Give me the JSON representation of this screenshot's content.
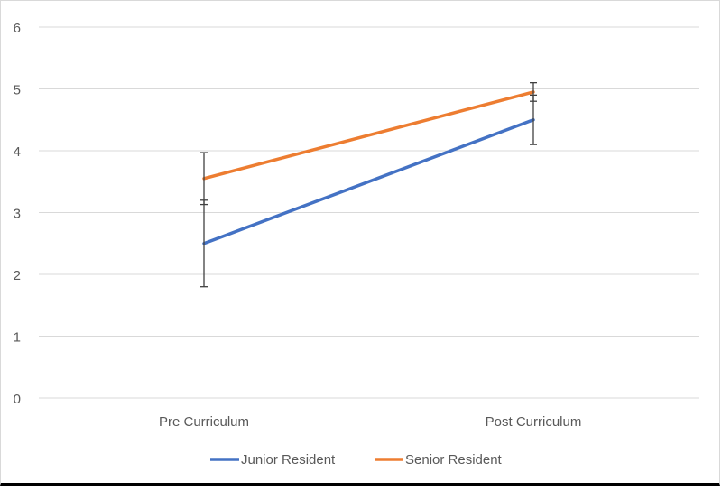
{
  "chart_data": {
    "type": "line",
    "categories": [
      "Pre Curriculum",
      "Post Curriculum"
    ],
    "ylim": [
      0,
      6
    ],
    "yticks": [
      0,
      1,
      2,
      3,
      4,
      5,
      6
    ],
    "grid": true,
    "legend_position": "bottom",
    "series": [
      {
        "name": "Junior Resident",
        "color": "#4472C4",
        "values": [
          2.5,
          4.5
        ],
        "error": [
          0.7,
          0.4
        ]
      },
      {
        "name": "Senior Resident",
        "color": "#ED7D31",
        "values": [
          3.55,
          4.95
        ],
        "error": [
          0.42,
          0.15
        ]
      }
    ]
  }
}
